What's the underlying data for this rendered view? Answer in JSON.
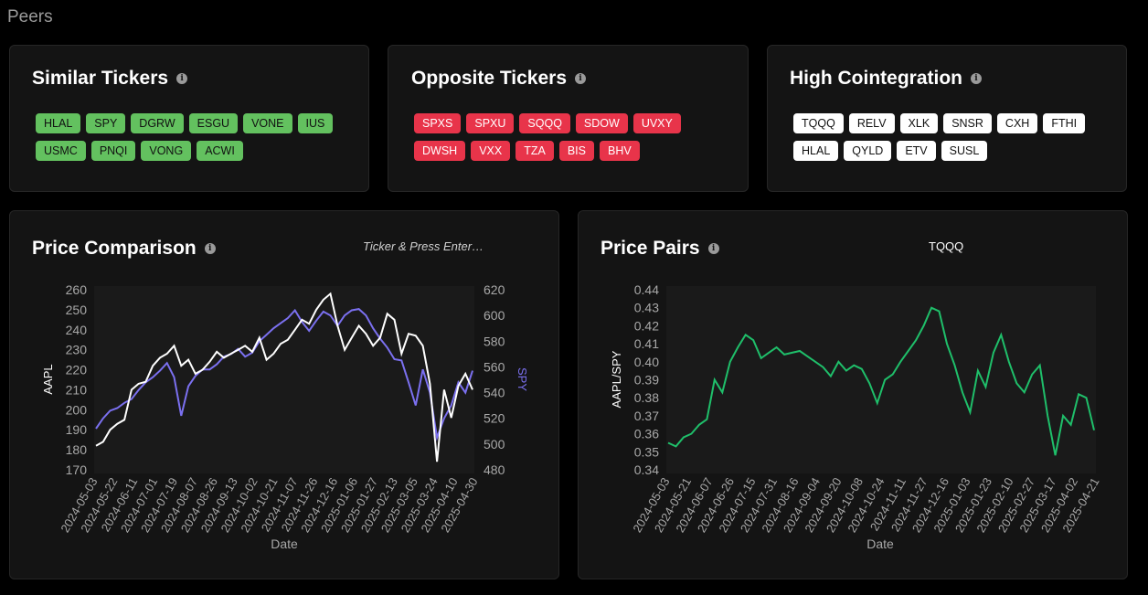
{
  "page": {
    "title": "Peers"
  },
  "similar": {
    "title": "Similar Tickers",
    "tickers": [
      "HLAL",
      "SPY",
      "DGRW",
      "ESGU",
      "VONE",
      "IUS",
      "USMC",
      "PNQI",
      "VONG",
      "ACWI"
    ]
  },
  "opposite": {
    "title": "Opposite Tickers",
    "tickers": [
      "SPXS",
      "SPXU",
      "SQQQ",
      "SDOW",
      "UVXY",
      "DWSH",
      "VXX",
      "TZA",
      "BIS",
      "BHV"
    ]
  },
  "cointegration": {
    "title": "High Cointegration",
    "tickers": [
      "TQQQ",
      "RELV",
      "XLK",
      "SNSR",
      "CXH",
      "FTHI",
      "HLAL",
      "QYLD",
      "ETV",
      "SUSL"
    ]
  },
  "price_comparison": {
    "title": "Price Comparison",
    "input_placeholder": "Ticker & Press Enter…"
  },
  "price_pairs": {
    "title": "Price Pairs",
    "selected_pair": "TQQQ"
  },
  "colors": {
    "green": "#63c15f",
    "red": "#e8344a",
    "aapl_line": "#ffffff",
    "spy_line": "#7b70f0",
    "ratio_line": "#1fbf6a"
  },
  "chart_data": [
    {
      "type": "line",
      "title": "Price Comparison",
      "xlabel": "Date",
      "ylabel": "AAPL",
      "y2label": "SPY",
      "x_ticks": [
        "2024-05-03",
        "2024-05-22",
        "2024-06-11",
        "2024-07-01",
        "2024-07-19",
        "2024-08-07",
        "2024-08-26",
        "2024-09-13",
        "2024-10-02",
        "2024-10-21",
        "2024-11-07",
        "2024-11-26",
        "2024-12-16",
        "2025-01-06",
        "2025-01-27",
        "2025-02-13",
        "2025-03-05",
        "2025-03-24",
        "2025-04-10",
        "2025-04-30"
      ],
      "ylim": [
        170,
        260
      ],
      "y_ticks": [
        170,
        180,
        190,
        200,
        210,
        220,
        230,
        240,
        250,
        260
      ],
      "y2lim": [
        480,
        620
      ],
      "y2_ticks": [
        480,
        500,
        520,
        540,
        560,
        580,
        600,
        620
      ],
      "series": [
        {
          "name": "AAPL",
          "axis": "left",
          "color": "#ffffff",
          "values": [
            182,
            184,
            190,
            193,
            195,
            210,
            213,
            214,
            222,
            226,
            228,
            232,
            222,
            225,
            218,
            220,
            224,
            229,
            226,
            228,
            230,
            232,
            229,
            236,
            225,
            228,
            233,
            235,
            240,
            245,
            243,
            250,
            255,
            258,
            242,
            230,
            236,
            242,
            238,
            232,
            236,
            248,
            245,
            228,
            238,
            237,
            232,
            213,
            174,
            210,
            196,
            212,
            218,
            210
          ]
        },
        {
          "name": "SPY",
          "axis": "right",
          "color": "#7b70f0",
          "values": [
            512,
            520,
            526,
            528,
            532,
            535,
            542,
            548,
            552,
            557,
            563,
            552,
            522,
            545,
            553,
            558,
            558,
            562,
            568,
            570,
            574,
            568,
            571,
            580,
            585,
            590,
            594,
            598,
            604,
            595,
            588,
            596,
            603,
            600,
            592,
            600,
            604,
            605,
            600,
            590,
            582,
            575,
            566,
            565,
            548,
            530,
            558,
            540,
            505,
            520,
            530,
            548,
            540,
            557
          ]
        }
      ]
    },
    {
      "type": "line",
      "title": "Price Pairs",
      "xlabel": "Date",
      "ylabel": "AAPL/SPY",
      "x_ticks": [
        "2024-05-03",
        "2024-05-21",
        "2024-06-07",
        "2024-06-26",
        "2024-07-15",
        "2024-07-31",
        "2024-08-16",
        "2024-09-04",
        "2024-09-20",
        "2024-10-08",
        "2024-10-24",
        "2024-11-11",
        "2024-11-27",
        "2024-12-16",
        "2025-01-03",
        "2025-01-23",
        "2025-02-10",
        "2025-02-27",
        "2025-03-17",
        "2025-04-02",
        "2025-04-21"
      ],
      "ylim": [
        0.34,
        0.44
      ],
      "y_ticks": [
        0.34,
        0.35,
        0.36,
        0.37,
        0.38,
        0.39,
        0.4,
        0.41,
        0.42,
        0.43,
        0.44
      ],
      "series": [
        {
          "name": "AAPL/SPY",
          "color": "#1fbf6a",
          "values": [
            0.355,
            0.353,
            0.358,
            0.36,
            0.365,
            0.368,
            0.39,
            0.383,
            0.4,
            0.408,
            0.415,
            0.412,
            0.402,
            0.405,
            0.408,
            0.404,
            0.405,
            0.406,
            0.403,
            0.4,
            0.397,
            0.392,
            0.4,
            0.395,
            0.398,
            0.396,
            0.388,
            0.377,
            0.39,
            0.393,
            0.4,
            0.406,
            0.412,
            0.42,
            0.43,
            0.428,
            0.41,
            0.398,
            0.383,
            0.372,
            0.395,
            0.386,
            0.405,
            0.415,
            0.4,
            0.388,
            0.383,
            0.393,
            0.398,
            0.37,
            0.348,
            0.37,
            0.365,
            0.382,
            0.38,
            0.362
          ]
        }
      ]
    }
  ]
}
